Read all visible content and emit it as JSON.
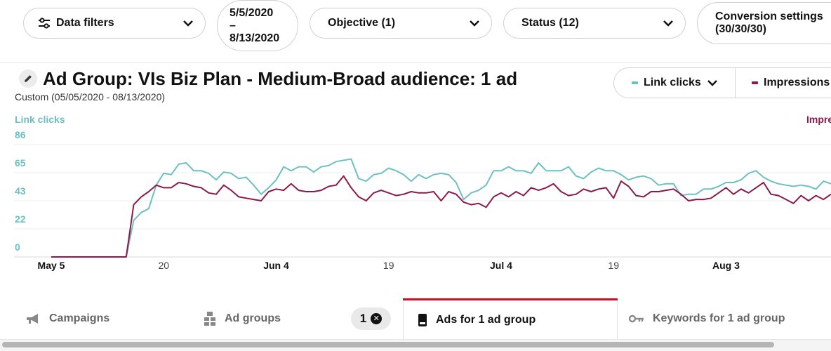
{
  "filters": {
    "data_filters": "Data filters",
    "date_line1": "5/5/2020",
    "date_line2": "–",
    "date_line3": "8/13/2020",
    "objective": "Objective (1)",
    "status": "Status (12)",
    "conversion_line1": "Conversion settings",
    "conversion_line2": "(30/30/30)"
  },
  "header": {
    "title": "Ad Group: VIs Biz Plan - Medium-Broad audience: 1 ad",
    "subtitle": "Custom (05/05/2020 - 08/13/2020)"
  },
  "metrics": {
    "primary": "Link clicks",
    "secondary": "Impressions"
  },
  "colors": {
    "link_clicks": "#6cc0c4",
    "impressions": "#8b1a4a",
    "tab_active": "#e60023"
  },
  "chart_data": {
    "type": "line",
    "y_left_title": "Link clicks",
    "y_right_title": "Impre",
    "yticks": [
      "86",
      "65",
      "43",
      "22",
      "0"
    ],
    "ylim": [
      0,
      86
    ],
    "xtick_labels": [
      "May 5",
      "20",
      "Jun 4",
      "19",
      "Jul 4",
      "19",
      "Aug 3"
    ],
    "series": [
      {
        "name": "Link clicks",
        "values": [
          0,
          0,
          0,
          0,
          0,
          0,
          0,
          0,
          0,
          0,
          0,
          28,
          34,
          37,
          55,
          64,
          63,
          71,
          72,
          66,
          66,
          64,
          59,
          65,
          64,
          60,
          61,
          55,
          48,
          53,
          59,
          69,
          66,
          69,
          69,
          65,
          69,
          70,
          73,
          74,
          75,
          60,
          58,
          63,
          64,
          68,
          66,
          63,
          58,
          63,
          60,
          63,
          64,
          63,
          57,
          44,
          49,
          51,
          55,
          66,
          66,
          69,
          66,
          66,
          64,
          72,
          66,
          66,
          66,
          69,
          62,
          60,
          65,
          68,
          66,
          66,
          63,
          59,
          61,
          62,
          60,
          55,
          56,
          56,
          47,
          48,
          48,
          52,
          52,
          54,
          57,
          57,
          59,
          64,
          66,
          61,
          58,
          56,
          55,
          54,
          55,
          54,
          52,
          58,
          56
        ]
      },
      {
        "name": "Impressions",
        "values": [
          0,
          0,
          0,
          0,
          0,
          0,
          0,
          0,
          0,
          0,
          0,
          40,
          46,
          50,
          55,
          53,
          53,
          57,
          56,
          54,
          53,
          49,
          48,
          55,
          51,
          46,
          45,
          44,
          43,
          50,
          52,
          51,
          56,
          51,
          50,
          50,
          51,
          54,
          55,
          62,
          53,
          46,
          43,
          49,
          51,
          49,
          47,
          48,
          50,
          49,
          49,
          50,
          43,
          50,
          48,
          42,
          40,
          41,
          38,
          46,
          49,
          46,
          50,
          47,
          53,
          51,
          53,
          56,
          50,
          47,
          48,
          52,
          50,
          52,
          53,
          45,
          58,
          54,
          47,
          46,
          50,
          50,
          51,
          52,
          48,
          43,
          44,
          44,
          45,
          49,
          53,
          48,
          52,
          49,
          53,
          57,
          48,
          47,
          44,
          41,
          47,
          43,
          47,
          44,
          48
        ]
      }
    ]
  },
  "tabs": {
    "campaigns": "Campaigns",
    "ad_groups": "Ad groups",
    "selected_count": "1",
    "ads": "Ads for 1 ad group",
    "keywords": "Keywords for 1 ad group"
  }
}
